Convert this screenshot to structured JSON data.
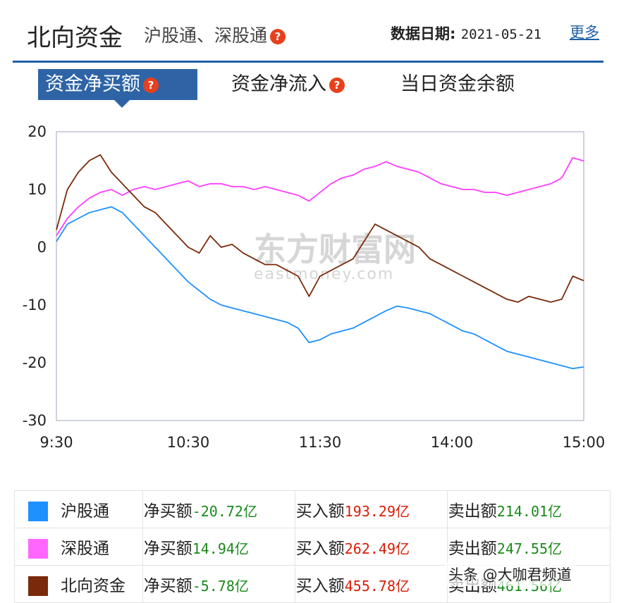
{
  "header": {
    "title": "北向资金",
    "subtitle": "沪股通、深股通",
    "date_label": "数据日期:",
    "date_value": "2021-05-21",
    "more": "更多"
  },
  "tabs": [
    {
      "label": "资金净买额",
      "active": true,
      "help": true
    },
    {
      "label": "资金净流入",
      "active": false,
      "help": true
    },
    {
      "label": "当日资金余额",
      "active": false,
      "help": false
    }
  ],
  "help_glyph": "?",
  "watermark": {
    "cn": "东方财富网",
    "en": "eastmoney.com"
  },
  "chart_data": {
    "type": "line",
    "title": "",
    "xlabel": "",
    "ylabel": "",
    "ylim": [
      -30,
      20
    ],
    "yticks": [
      "20",
      "10",
      "0",
      "-10",
      "-20",
      "-30"
    ],
    "xticks": [
      "9:30",
      "10:30",
      "11:30",
      "14:00",
      "15:00"
    ],
    "grid": false,
    "series": [
      {
        "name": "沪股通",
        "color": "#1e90ff",
        "points": [
          [
            0,
            1
          ],
          [
            5,
            4
          ],
          [
            10,
            5
          ],
          [
            15,
            6
          ],
          [
            20,
            6.5
          ],
          [
            25,
            7
          ],
          [
            30,
            6
          ],
          [
            35,
            4
          ],
          [
            40,
            2
          ],
          [
            45,
            0
          ],
          [
            50,
            -2
          ],
          [
            55,
            -4
          ],
          [
            60,
            -6
          ],
          [
            65,
            -7.5
          ],
          [
            70,
            -9
          ],
          [
            75,
            -10
          ],
          [
            80,
            -10.5
          ],
          [
            85,
            -11
          ],
          [
            90,
            -11.5
          ],
          [
            95,
            -12
          ],
          [
            100,
            -12.5
          ],
          [
            105,
            -13
          ],
          [
            110,
            -14
          ],
          [
            115,
            -16.5
          ],
          [
            120,
            -16
          ],
          [
            125,
            -15
          ],
          [
            130,
            -14.5
          ],
          [
            135,
            -14
          ],
          [
            140,
            -13
          ],
          [
            145,
            -12
          ],
          [
            150,
            -11
          ],
          [
            155,
            -10.2
          ],
          [
            160,
            -10.5
          ],
          [
            165,
            -11
          ],
          [
            170,
            -11.5
          ],
          [
            175,
            -12.5
          ],
          [
            180,
            -13.5
          ],
          [
            185,
            -14.5
          ],
          [
            190,
            -15
          ],
          [
            195,
            -16
          ],
          [
            200,
            -17
          ],
          [
            205,
            -18
          ],
          [
            210,
            -18.5
          ],
          [
            215,
            -19
          ],
          [
            220,
            -19.5
          ],
          [
            225,
            -20
          ],
          [
            230,
            -20.5
          ],
          [
            235,
            -21
          ],
          [
            240,
            -20.72
          ]
        ]
      },
      {
        "name": "深股通",
        "color": "#ff3dff",
        "points": [
          [
            0,
            2
          ],
          [
            5,
            5
          ],
          [
            10,
            7
          ],
          [
            15,
            8.5
          ],
          [
            20,
            9.5
          ],
          [
            25,
            10
          ],
          [
            30,
            9
          ],
          [
            35,
            10
          ],
          [
            40,
            10.5
          ],
          [
            45,
            10
          ],
          [
            50,
            10.5
          ],
          [
            55,
            11
          ],
          [
            60,
            11.5
          ],
          [
            65,
            10.5
          ],
          [
            70,
            11
          ],
          [
            75,
            11
          ],
          [
            80,
            10.5
          ],
          [
            85,
            10.5
          ],
          [
            90,
            10
          ],
          [
            95,
            10.5
          ],
          [
            100,
            10
          ],
          [
            105,
            9.5
          ],
          [
            110,
            9
          ],
          [
            115,
            8
          ],
          [
            120,
            9.5
          ],
          [
            125,
            11
          ],
          [
            130,
            12
          ],
          [
            135,
            12.5
          ],
          [
            140,
            13.5
          ],
          [
            145,
            14
          ],
          [
            150,
            14.8
          ],
          [
            155,
            14
          ],
          [
            160,
            13.5
          ],
          [
            165,
            13
          ],
          [
            170,
            12
          ],
          [
            175,
            11
          ],
          [
            180,
            10.5
          ],
          [
            185,
            10
          ],
          [
            190,
            10
          ],
          [
            195,
            9.5
          ],
          [
            200,
            9.5
          ],
          [
            205,
            9
          ],
          [
            210,
            9.5
          ],
          [
            215,
            10
          ],
          [
            220,
            10.5
          ],
          [
            225,
            11
          ],
          [
            230,
            12
          ],
          [
            235,
            15.5
          ],
          [
            240,
            14.94
          ]
        ]
      },
      {
        "name": "北向资金",
        "color": "#7a2a0a",
        "points": [
          [
            0,
            3
          ],
          [
            5,
            10
          ],
          [
            10,
            13
          ],
          [
            15,
            15
          ],
          [
            20,
            16
          ],
          [
            25,
            13
          ],
          [
            30,
            11
          ],
          [
            35,
            9
          ],
          [
            40,
            7
          ],
          [
            45,
            6
          ],
          [
            50,
            4
          ],
          [
            55,
            2
          ],
          [
            60,
            0
          ],
          [
            65,
            -1
          ],
          [
            70,
            2
          ],
          [
            75,
            0
          ],
          [
            80,
            0.5
          ],
          [
            85,
            -1
          ],
          [
            90,
            -2
          ],
          [
            95,
            -3
          ],
          [
            100,
            -3
          ],
          [
            105,
            -4
          ],
          [
            110,
            -5
          ],
          [
            115,
            -8.5
          ],
          [
            120,
            -5
          ],
          [
            125,
            -4
          ],
          [
            130,
            -3
          ],
          [
            135,
            -2
          ],
          [
            140,
            1
          ],
          [
            145,
            4
          ],
          [
            150,
            3
          ],
          [
            155,
            2
          ],
          [
            160,
            1
          ],
          [
            165,
            0
          ],
          [
            170,
            -2
          ],
          [
            175,
            -3
          ],
          [
            180,
            -4
          ],
          [
            185,
            -5
          ],
          [
            190,
            -6
          ],
          [
            195,
            -7
          ],
          [
            200,
            -8
          ],
          [
            205,
            -9
          ],
          [
            210,
            -9.5
          ],
          [
            215,
            -8.5
          ],
          [
            220,
            -9
          ],
          [
            225,
            -9.5
          ],
          [
            230,
            -9
          ],
          [
            235,
            -5
          ],
          [
            240,
            -5.78
          ]
        ]
      }
    ]
  },
  "legend": [
    {
      "name": "沪股通",
      "color": "#1e90ff",
      "net_label": "净买额",
      "net_value": "-20.72亿",
      "buy_label": "买入额",
      "buy_value": "193.29亿",
      "sell_label": "卖出额",
      "sell_value": "214.01亿"
    },
    {
      "name": "深股通",
      "color": "#ff66ff",
      "net_label": "净买额",
      "net_value": "14.94亿",
      "buy_label": "买入额",
      "buy_value": "262.49亿",
      "sell_label": "卖出额",
      "sell_value": "247.55亿"
    },
    {
      "name": "北向资金",
      "color": "#7a2a0a",
      "net_label": "净买额",
      "net_value": "-5.78亿",
      "buy_label": "买入额",
      "buy_value": "455.78亿",
      "sell_label": "卖出额",
      "sell_value": "461.56亿"
    }
  ],
  "corner_watermark": "头条 @大咖君频道"
}
